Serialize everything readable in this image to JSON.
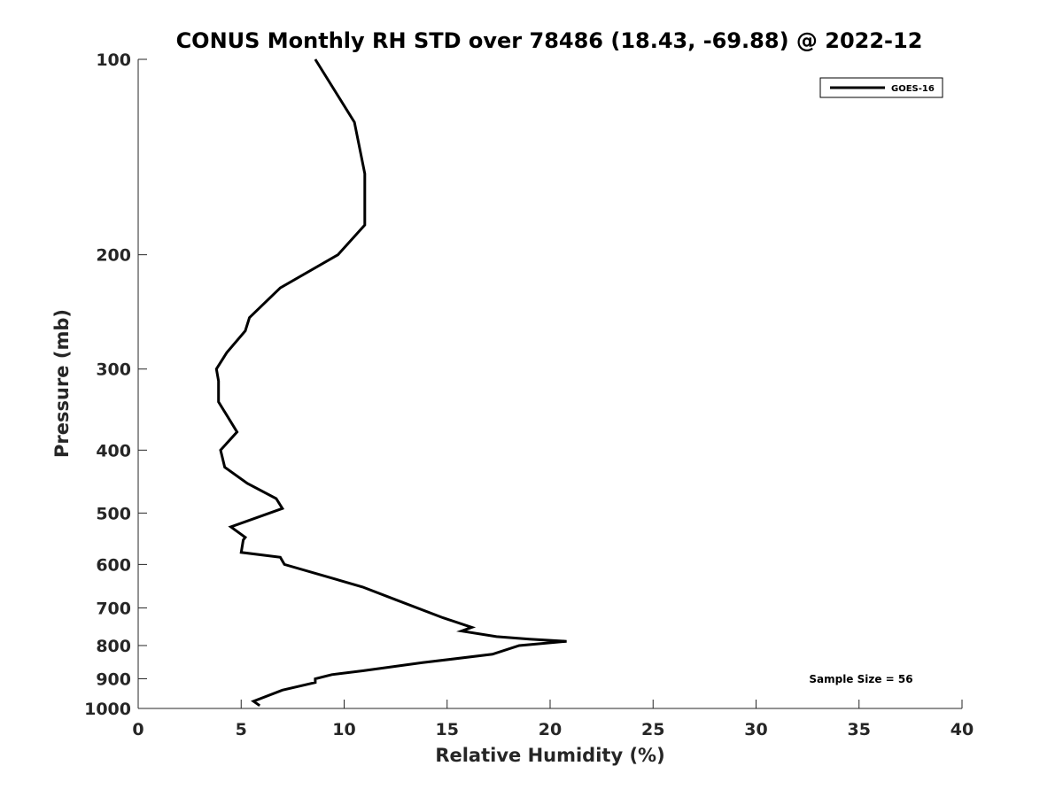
{
  "chart_data": {
    "type": "line",
    "title": "CONUS Monthly RH STD over 78486 (18.43, -69.88) @ 2022-12",
    "xlabel": "Relative Humidity (%)",
    "ylabel": "Pressure (mb)",
    "xlim": [
      0,
      40
    ],
    "ylim": [
      100,
      1000
    ],
    "y_scale": "log",
    "y_inverted": true,
    "x_ticks": [
      0,
      5,
      10,
      15,
      20,
      25,
      30,
      35,
      40
    ],
    "x_tick_labels": [
      "0",
      "5",
      "10",
      "15",
      "20",
      "25",
      "30",
      "35",
      "40"
    ],
    "y_ticks": [
      100,
      200,
      300,
      400,
      500,
      600,
      700,
      800,
      900,
      1000
    ],
    "y_tick_labels": [
      "100",
      "200",
      "300",
      "400",
      "500",
      "600",
      "700",
      "800",
      "900",
      "1000"
    ],
    "grid": false,
    "legend_position": "top-right",
    "series": [
      {
        "name": "GOES-16",
        "color": "#000000",
        "x": [
          8.6,
          10.5,
          11.0,
          11.0,
          11.0,
          9.7,
          6.9,
          5.4,
          5.2,
          4.3,
          3.8,
          3.9,
          3.9,
          4.8,
          4.0,
          4.2,
          5.3,
          6.7,
          7.0,
          4.5,
          5.2,
          5.1,
          5.0,
          6.9,
          7.1,
          10.9,
          12.5,
          14.8,
          16.2,
          15.7,
          17.4,
          19.0,
          20.8,
          18.5,
          17.2,
          13.8,
          10.9,
          9.4,
          8.6,
          8.6,
          7.0,
          5.6,
          5.9
        ],
        "y": [
          100,
          125,
          150,
          175,
          180,
          200,
          225,
          250,
          262,
          283,
          300,
          313,
          337,
          375,
          400,
          425,
          450,
          475,
          492,
          525,
          545,
          550,
          575,
          585,
          600,
          650,
          680,
          725,
          750,
          760,
          775,
          782,
          788,
          800,
          825,
          850,
          875,
          887,
          900,
          912,
          937,
          975,
          990
        ]
      }
    ],
    "annotations": [
      "Sample Size = 56"
    ]
  }
}
